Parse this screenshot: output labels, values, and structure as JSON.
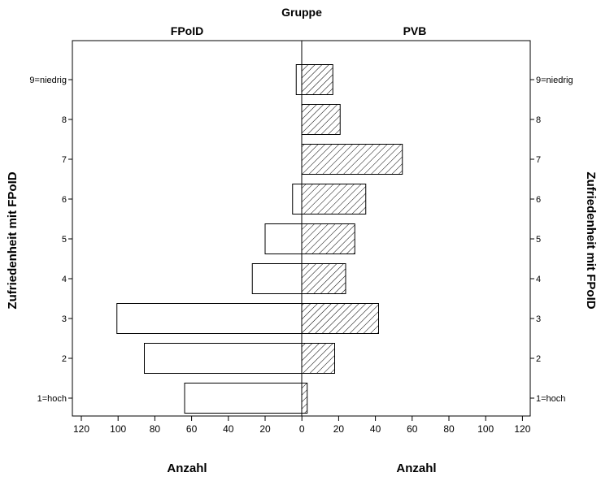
{
  "chart_data": {
    "type": "bar",
    "orientation": "horizontal",
    "title": "Gruppe",
    "panels": [
      "FPoID",
      "PVB"
    ],
    "categories": [
      "1=hoch",
      "2",
      "3",
      "4",
      "5",
      "6",
      "7",
      "8",
      "9=niedrig"
    ],
    "series": [
      {
        "name": "FPoID",
        "values": [
          64,
          86,
          101,
          27,
          20,
          5,
          0,
          0,
          3
        ],
        "fill": "white"
      },
      {
        "name": "PVB",
        "values": [
          3,
          18,
          42,
          24,
          29,
          35,
          55,
          21,
          17
        ],
        "fill": "hatched"
      }
    ],
    "xlabel": "Anzahl",
    "ylabel": "Zufriedenheit mit FPoID",
    "xlim": [
      0,
      120
    ],
    "xticks": [
      "120",
      "100",
      "80",
      "60",
      "40",
      "20",
      "0",
      "20",
      "40",
      "60",
      "80",
      "100",
      "120"
    ]
  },
  "labels": {
    "title": "Gruppe",
    "panel_left": "FPoID",
    "panel_right": "PVB",
    "xlabel_left": "Anzahl",
    "xlabel_right": "Anzahl",
    "ylabel_left": "Zufriedenheit mit FPoID",
    "ylabel_right": "Zufriedenheit mit FPoID"
  }
}
